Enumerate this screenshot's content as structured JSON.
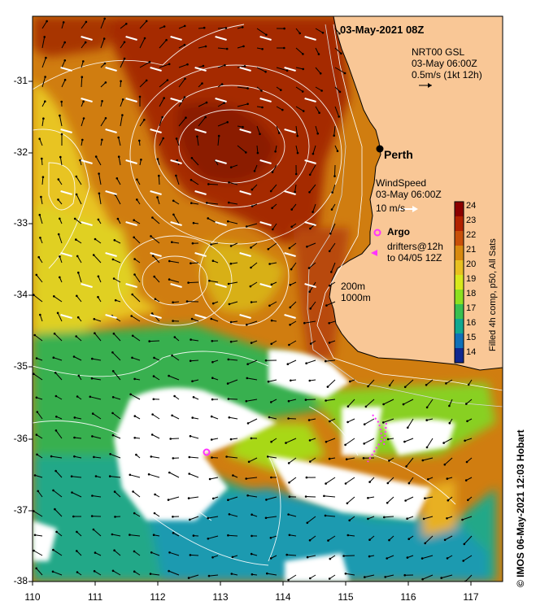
{
  "title": "03-May-2021 08Z",
  "current_legend": {
    "line1": "NRT00 GSL",
    "line2": "03-May 06:00Z",
    "line3": "0.5m/s (1kt 12h)"
  },
  "city": "Perth",
  "wind_legend": {
    "line1": "WindSpeed",
    "line2": "03-May 06:00Z",
    "line3": "10 m/s"
  },
  "argo_label": "Argo",
  "drifter_legend": {
    "line1": "drifters@12h",
    "line2": "to 04/05 12Z"
  },
  "isobath_labels": [
    "200m",
    "1000m"
  ],
  "colorbar": {
    "title": "Filled 4h comp, p50, All Sats",
    "ticks": [
      "24",
      "23",
      "22",
      "21",
      "20",
      "19",
      "18",
      "17",
      "16",
      "15",
      "14"
    ],
    "colors": [
      "#8b0000",
      "#b22200",
      "#c8500a",
      "#d88a10",
      "#e8c020",
      "#d8e81c",
      "#8ce020",
      "#38c050",
      "#10a890",
      "#1070b8",
      "#102890"
    ]
  },
  "y_axis": {
    "ticks": [
      "-31",
      "-32",
      "-33",
      "-34",
      "-35",
      "-36",
      "-37",
      "-38"
    ]
  },
  "x_axis": {
    "ticks": [
      "110",
      "111",
      "112",
      "113",
      "114",
      "115",
      "116",
      "117"
    ]
  },
  "credit": "© IMOS 06-May-2021 12:03 Hobart",
  "colors": {
    "land": "#f9c796",
    "cloud": "#ffffff",
    "warm": "#a52a00",
    "cool": "#2ab06a",
    "argo": "#ff33ff"
  }
}
